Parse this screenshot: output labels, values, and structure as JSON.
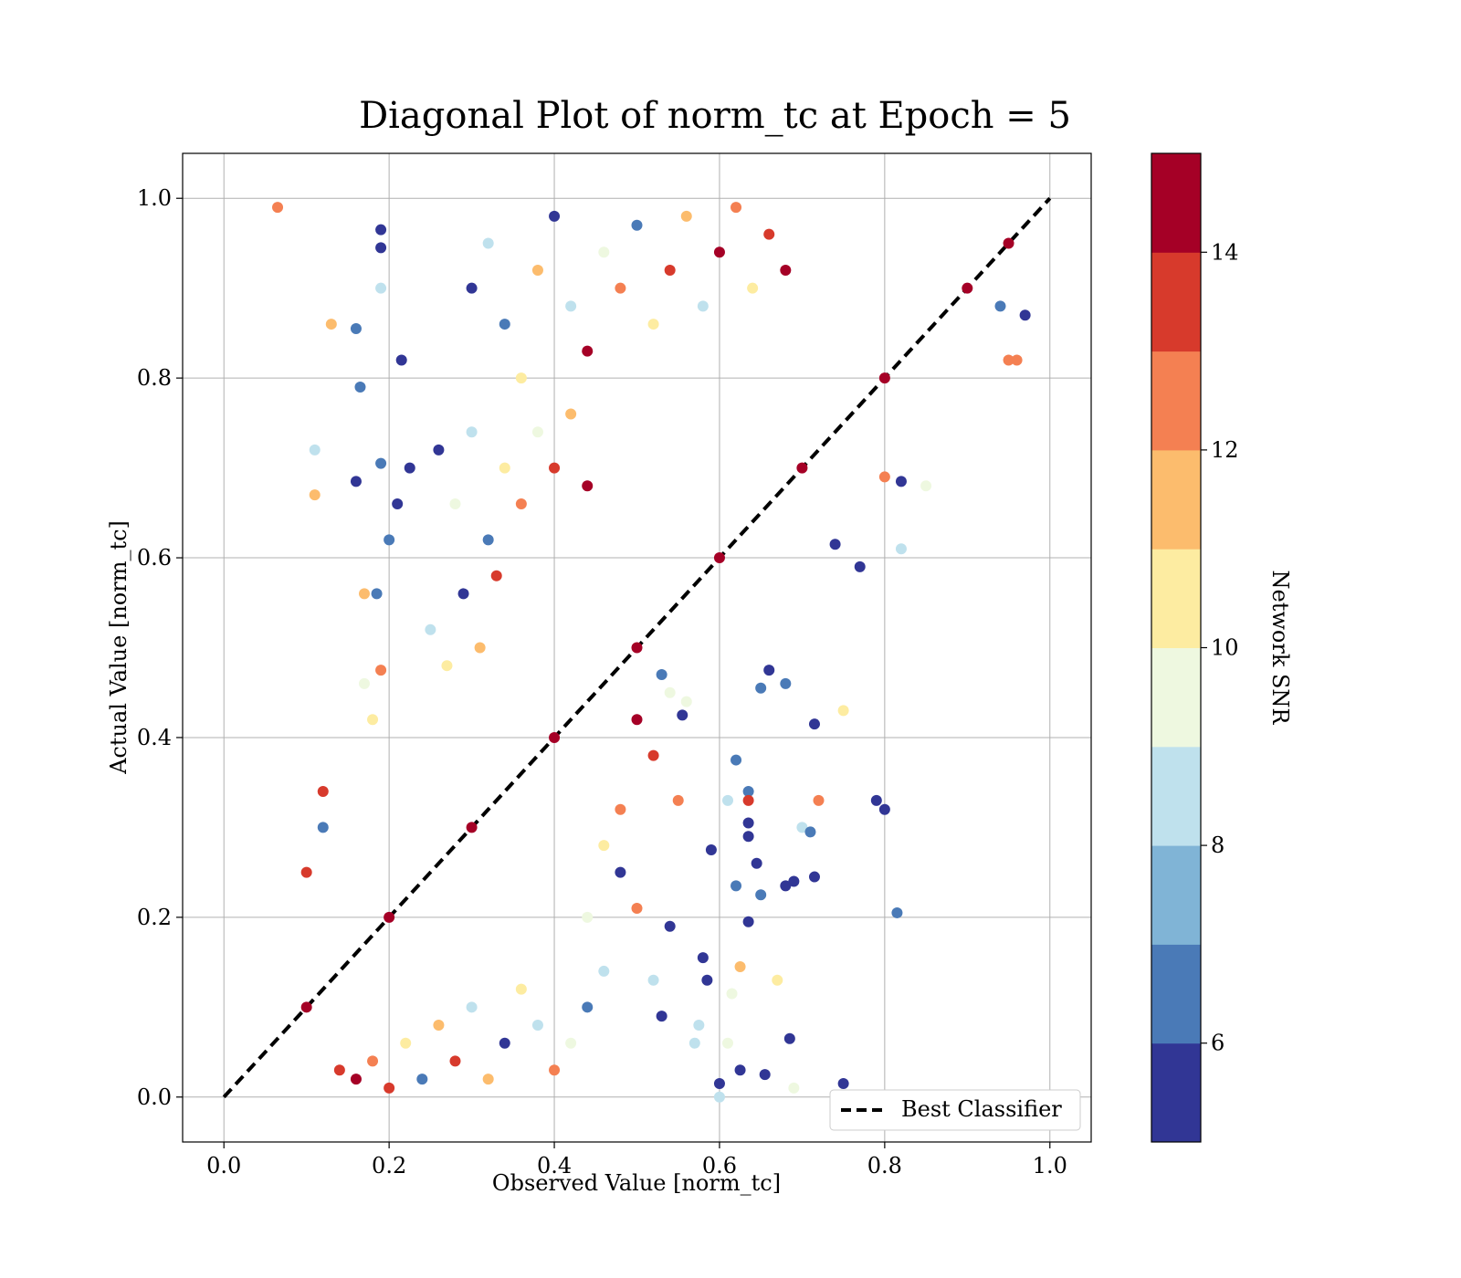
{
  "chart_data": {
    "type": "scatter",
    "title": "Diagonal Plot of norm_tc at Epoch = 5",
    "xlabel": "Observed Value [norm_tc]",
    "ylabel": "Actual Value [norm_tc]",
    "xlim": [
      -0.05,
      1.05
    ],
    "ylim": [
      -0.05,
      1.05
    ],
    "x_ticks": [
      "0.0",
      "0.2",
      "0.4",
      "0.6",
      "0.8",
      "1.0"
    ],
    "y_ticks": [
      "0.0",
      "0.2",
      "0.4",
      "0.6",
      "0.8",
      "1.0"
    ],
    "grid": true,
    "legend": {
      "placement": "lower-right",
      "entries": [
        "Best Classifier"
      ]
    },
    "reference_line": {
      "label": "Best Classifier",
      "style": "dashed",
      "color": "#000000",
      "points": [
        [
          0,
          0
        ],
        [
          1,
          1
        ]
      ]
    },
    "colorbar": {
      "label": "Network SNR",
      "range": [
        5,
        15
      ],
      "ticks": [
        "6",
        "8",
        "10",
        "12",
        "14"
      ],
      "colors": [
        "#313695",
        "#4a7ab7",
        "#80b4d6",
        "#bfe1ed",
        "#eef8e0",
        "#fdeca1",
        "#fcbc6d",
        "#f48052",
        "#d73a2c",
        "#a50026"
      ]
    },
    "series": [
      {
        "color_by": "Network SNR",
        "points": [
          [
            0.065,
            0.99,
            12.5
          ],
          [
            0.13,
            0.86,
            11.5
          ],
          [
            0.16,
            0.855,
            6.5
          ],
          [
            0.19,
            0.965,
            5.5
          ],
          [
            0.19,
            0.945,
            5.5
          ],
          [
            0.215,
            0.82,
            5.5
          ],
          [
            0.19,
            0.9,
            8.5
          ],
          [
            0.11,
            0.72,
            8.5
          ],
          [
            0.11,
            0.67,
            11.5
          ],
          [
            0.16,
            0.685,
            5.5
          ],
          [
            0.165,
            0.79,
            6.5
          ],
          [
            0.19,
            0.705,
            6.5
          ],
          [
            0.17,
            0.56,
            11.5
          ],
          [
            0.185,
            0.56,
            6.5
          ],
          [
            0.19,
            0.475,
            12.5
          ],
          [
            0.18,
            0.42,
            10.5
          ],
          [
            0.17,
            0.46,
            9.5
          ],
          [
            0.2,
            0.62,
            6.5
          ],
          [
            0.225,
            0.7,
            5.5
          ],
          [
            0.21,
            0.66,
            5.5
          ],
          [
            0.12,
            0.3,
            6.5
          ],
          [
            0.12,
            0.34,
            13.5
          ],
          [
            0.1,
            0.25,
            13.5
          ],
          [
            0.75,
            0.015,
            5.5
          ],
          [
            0.79,
            0.33,
            5.5
          ],
          [
            0.8,
            0.32,
            5.5
          ],
          [
            0.815,
            0.205,
            6.5
          ],
          [
            0.715,
            0.415,
            5.5
          ],
          [
            0.75,
            0.43,
            10.5
          ],
          [
            0.72,
            0.33,
            12.5
          ],
          [
            0.7,
            0.3,
            8.5
          ],
          [
            0.71,
            0.295,
            6.5
          ],
          [
            0.715,
            0.245,
            5.5
          ],
          [
            0.69,
            0.24,
            5.5
          ],
          [
            0.68,
            0.235,
            5.5
          ],
          [
            0.685,
            0.065,
            5.5
          ],
          [
            0.69,
            0.01,
            9.5
          ],
          [
            0.67,
            0.13,
            10.5
          ],
          [
            0.655,
            0.025,
            5.5
          ],
          [
            0.645,
            0.26,
            5.5
          ],
          [
            0.65,
            0.225,
            6.5
          ],
          [
            0.635,
            0.34,
            6.5
          ],
          [
            0.635,
            0.33,
            13.5
          ],
          [
            0.635,
            0.305,
            5.5
          ],
          [
            0.635,
            0.29,
            5.5
          ],
          [
            0.635,
            0.195,
            5.5
          ],
          [
            0.625,
            0.03,
            5.5
          ],
          [
            0.625,
            0.145,
            11.5
          ],
          [
            0.62,
            0.375,
            6.5
          ],
          [
            0.62,
            0.235,
            6.5
          ],
          [
            0.61,
            0.33,
            8.5
          ],
          [
            0.615,
            0.115,
            9.5
          ],
          [
            0.61,
            0.06,
            9.5
          ],
          [
            0.6,
            0.015,
            5.5
          ],
          [
            0.6,
            0.0,
            8.5
          ],
          [
            0.59,
            0.275,
            5.5
          ],
          [
            0.585,
            0.13,
            5.5
          ],
          [
            0.58,
            0.155,
            5.5
          ],
          [
            0.575,
            0.08,
            8.5
          ],
          [
            0.57,
            0.06,
            8.5
          ],
          [
            0.82,
            0.61,
            8.5
          ],
          [
            0.77,
            0.59,
            5.5
          ],
          [
            0.74,
            0.615,
            5.5
          ],
          [
            0.66,
            0.475,
            5.5
          ],
          [
            0.65,
            0.455,
            6.5
          ],
          [
            0.68,
            0.46,
            6.5
          ],
          [
            0.85,
            0.68,
            9.5
          ],
          [
            0.82,
            0.685,
            5.5
          ],
          [
            0.8,
            0.69,
            12.5
          ],
          [
            0.96,
            0.82,
            12.5
          ],
          [
            0.95,
            0.82,
            12.5
          ],
          [
            0.94,
            0.88,
            6.5
          ],
          [
            0.97,
            0.87,
            5.5
          ],
          [
            0.555,
            0.425,
            5.5
          ],
          [
            0.54,
            0.45,
            9.5
          ],
          [
            0.56,
            0.44,
            9.5
          ],
          [
            0.53,
            0.47,
            6.5
          ],
          [
            0.55,
            0.33,
            12.5
          ],
          [
            0.54,
            0.19,
            5.5
          ],
          [
            0.53,
            0.09,
            5.5
          ],
          [
            0.52,
            0.13,
            8.5
          ],
          [
            0.5,
            0.21,
            12.5
          ],
          [
            0.48,
            0.25,
            5.5
          ],
          [
            0.46,
            0.14,
            8.5
          ],
          [
            0.44,
            0.1,
            6.5
          ],
          [
            0.42,
            0.06,
            9.5
          ],
          [
            0.4,
            0.03,
            12.5
          ],
          [
            0.38,
            0.08,
            8.5
          ],
          [
            0.36,
            0.12,
            10.5
          ],
          [
            0.34,
            0.06,
            5.5
          ],
          [
            0.32,
            0.02,
            11.5
          ],
          [
            0.3,
            0.1,
            8.5
          ],
          [
            0.28,
            0.04,
            13.5
          ],
          [
            0.26,
            0.08,
            11.5
          ],
          [
            0.24,
            0.02,
            6.5
          ],
          [
            0.22,
            0.06,
            10.5
          ],
          [
            0.2,
            0.01,
            13.5
          ],
          [
            0.18,
            0.04,
            12.5
          ],
          [
            0.16,
            0.02,
            14.5
          ],
          [
            0.14,
            0.03,
            13.5
          ],
          [
            0.3,
            0.9,
            5.5
          ],
          [
            0.32,
            0.95,
            8.5
          ],
          [
            0.34,
            0.86,
            6.5
          ],
          [
            0.36,
            0.8,
            10.5
          ],
          [
            0.38,
            0.92,
            11.5
          ],
          [
            0.4,
            0.98,
            5.5
          ],
          [
            0.42,
            0.88,
            8.5
          ],
          [
            0.44,
            0.83,
            14.5
          ],
          [
            0.46,
            0.94,
            9.5
          ],
          [
            0.48,
            0.9,
            12.5
          ],
          [
            0.5,
            0.97,
            6.5
          ],
          [
            0.52,
            0.86,
            10.5
          ],
          [
            0.54,
            0.92,
            13.5
          ],
          [
            0.56,
            0.98,
            11.5
          ],
          [
            0.58,
            0.88,
            8.5
          ],
          [
            0.6,
            0.94,
            14.5
          ],
          [
            0.62,
            0.99,
            12.5
          ],
          [
            0.64,
            0.9,
            10.5
          ],
          [
            0.66,
            0.96,
            13.5
          ],
          [
            0.68,
            0.92,
            14.5
          ],
          [
            0.26,
            0.72,
            5.5
          ],
          [
            0.28,
            0.66,
            9.5
          ],
          [
            0.3,
            0.74,
            8.5
          ],
          [
            0.32,
            0.62,
            6.5
          ],
          [
            0.34,
            0.7,
            10.5
          ],
          [
            0.36,
            0.66,
            12.5
          ],
          [
            0.38,
            0.74,
            9.5
          ],
          [
            0.4,
            0.7,
            13.5
          ],
          [
            0.42,
            0.76,
            11.5
          ],
          [
            0.44,
            0.68,
            14.5
          ],
          [
            0.25,
            0.52,
            8.5
          ],
          [
            0.27,
            0.48,
            10.5
          ],
          [
            0.29,
            0.56,
            5.5
          ],
          [
            0.31,
            0.5,
            11.5
          ],
          [
            0.33,
            0.58,
            13.5
          ],
          [
            0.5,
            0.42,
            14.5
          ],
          [
            0.52,
            0.38,
            13.5
          ],
          [
            0.48,
            0.32,
            12.5
          ],
          [
            0.46,
            0.28,
            10.5
          ],
          [
            0.44,
            0.2,
            9.5
          ],
          [
            0.1,
            0.1,
            14.5
          ],
          [
            0.2,
            0.2,
            14.5
          ],
          [
            0.3,
            0.3,
            14.5
          ],
          [
            0.4,
            0.4,
            14.5
          ],
          [
            0.5,
            0.5,
            14.5
          ],
          [
            0.6,
            0.6,
            14.5
          ],
          [
            0.7,
            0.7,
            14.5
          ],
          [
            0.8,
            0.8,
            14.5
          ],
          [
            0.9,
            0.9,
            14.5
          ],
          [
            0.95,
            0.95,
            14.5
          ]
        ]
      }
    ]
  }
}
